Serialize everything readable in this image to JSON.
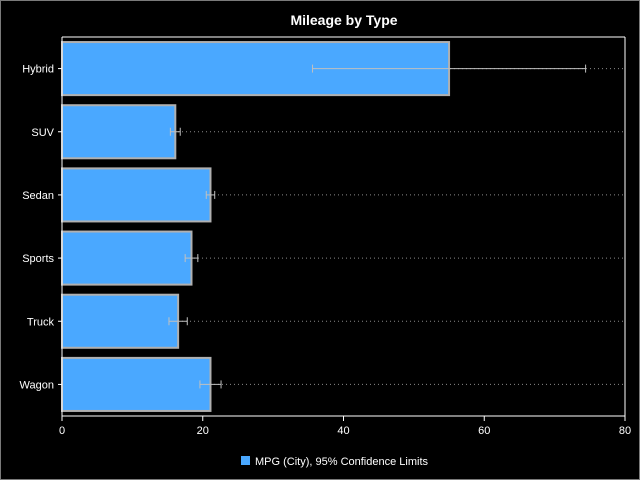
{
  "chart_data": {
    "type": "bar",
    "orientation": "horizontal",
    "title": "Mileage by Type",
    "xlabel": "",
    "ylabel": "",
    "xlim": [
      0,
      80
    ],
    "x_ticks": [
      0,
      20,
      40,
      60,
      80
    ],
    "categories": [
      "Hybrid",
      "SUV",
      "Sedan",
      "Sports",
      "Truck",
      "Wagon"
    ],
    "series": [
      {
        "name": "MPG (City), 95% Confidence Limits",
        "values": [
          55.0,
          16.1,
          21.1,
          18.4,
          16.5,
          21.1
        ],
        "lower": [
          35.6,
          15.4,
          20.5,
          17.5,
          15.2,
          19.6
        ],
        "upper": [
          74.4,
          16.8,
          21.7,
          19.3,
          17.8,
          22.6
        ]
      }
    ],
    "legend": {
      "label": "MPG (City), 95% Confidence Limits",
      "position": "bottom"
    },
    "grid": "dotted reference lines per category",
    "colors": {
      "bar_fill": "#4aa8ff",
      "bar_outline": "#b0b0b0",
      "error_bar": "#c0c0c0",
      "background": "#000000",
      "text": "#ffffff"
    }
  }
}
